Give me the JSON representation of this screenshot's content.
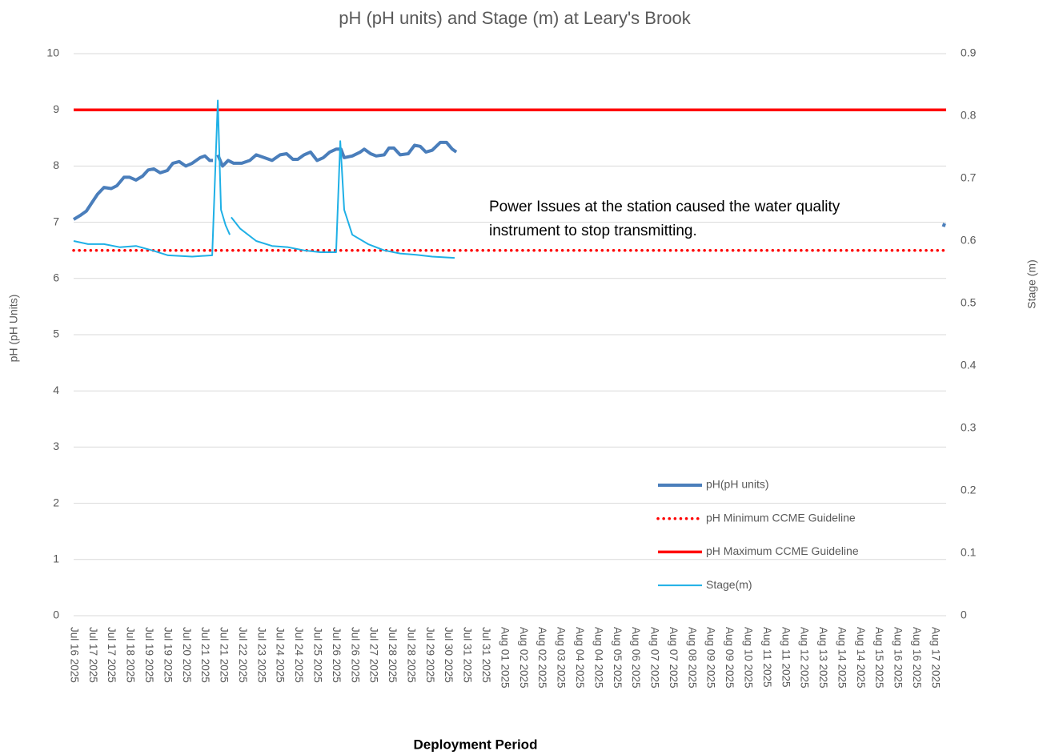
{
  "chart_data": {
    "type": "line",
    "title": "pH (pH units) and Stage (m) at Leary's Brook",
    "xlabel": "Deployment Period",
    "ylabel": "pH (pH Units)",
    "y2label": "Stage (m)",
    "annotation": [
      "Power Issues at the station caused the water quality",
      "instrument to stop transmitting."
    ],
    "xlim": [
      0,
      46.6
    ],
    "xticks": [
      {
        "value": 0,
        "label": "Jul 16 2025"
      },
      {
        "value": 1,
        "label": "Jul 17 2025"
      },
      {
        "value": 2,
        "label": "Jul 17 2025"
      },
      {
        "value": 3,
        "label": "Jul 18 2025"
      },
      {
        "value": 4,
        "label": "Jul 19 2025"
      },
      {
        "value": 5,
        "label": "Jul 19 2025"
      },
      {
        "value": 6,
        "label": "Jul 20 2025"
      },
      {
        "value": 7,
        "label": "Jul 21 2025"
      },
      {
        "value": 8,
        "label": "Jul 21 2025"
      },
      {
        "value": 9,
        "label": "Jul 22 2025"
      },
      {
        "value": 10,
        "label": "Jul 23 2025"
      },
      {
        "value": 11,
        "label": "Jul 24 2025"
      },
      {
        "value": 12,
        "label": "Jul 24 2025"
      },
      {
        "value": 13,
        "label": "Jul 25 2025"
      },
      {
        "value": 14,
        "label": "Jul 26 2025"
      },
      {
        "value": 15,
        "label": "Jul 26 2025"
      },
      {
        "value": 16,
        "label": "Jul 27 2025"
      },
      {
        "value": 17,
        "label": "Jul 28 2025"
      },
      {
        "value": 18,
        "label": "Jul 28 2025"
      },
      {
        "value": 19,
        "label": "Jul 29 2025"
      },
      {
        "value": 20,
        "label": "Jul 30 2025"
      },
      {
        "value": 21,
        "label": "Jul 31 2025"
      },
      {
        "value": 22,
        "label": "Jul 31 2025"
      },
      {
        "value": 23,
        "label": "Aug 01 2025"
      },
      {
        "value": 24,
        "label": "Aug 02 2025"
      },
      {
        "value": 25,
        "label": "Aug 02 2025"
      },
      {
        "value": 26,
        "label": "Aug 03 2025"
      },
      {
        "value": 27,
        "label": "Aug 04 2025"
      },
      {
        "value": 28,
        "label": "Aug 04 2025"
      },
      {
        "value": 29,
        "label": "Aug 05 2025"
      },
      {
        "value": 30,
        "label": "Aug 06 2025"
      },
      {
        "value": 31,
        "label": "Aug 07 2025"
      },
      {
        "value": 32,
        "label": "Aug 07 2025"
      },
      {
        "value": 33,
        "label": "Aug 08 2025"
      },
      {
        "value": 34,
        "label": "Aug 09 2025"
      },
      {
        "value": 35,
        "label": "Aug 09 2025"
      },
      {
        "value": 36,
        "label": "Aug 10 2025"
      },
      {
        "value": 37,
        "label": "Aug 11 2025"
      },
      {
        "value": 38,
        "label": "Aug 11 2025"
      },
      {
        "value": 39,
        "label": "Aug 12 2025"
      },
      {
        "value": 40,
        "label": "Aug 13 2025"
      },
      {
        "value": 41,
        "label": "Aug 14 2025"
      },
      {
        "value": 42,
        "label": "Aug 14 2025"
      },
      {
        "value": 43,
        "label": "Aug 15 2025"
      },
      {
        "value": 44,
        "label": "Aug 16 2025"
      },
      {
        "value": 45,
        "label": "Aug 16 2025"
      },
      {
        "value": 46,
        "label": "Aug 17 2025"
      }
    ],
    "ylim": [
      0,
      10
    ],
    "yticks": [
      0,
      1,
      2,
      3,
      4,
      5,
      6,
      7,
      8,
      9,
      10
    ],
    "y2lim": [
      0,
      0.9
    ],
    "y2ticks": [
      0,
      0.1,
      0.2,
      0.3,
      0.4,
      0.5,
      0.6,
      0.7,
      0.8,
      0.9
    ],
    "grid": true,
    "legend": "lower right",
    "series": [
      {
        "name": "pH(pH units)",
        "color": "#4a7ebb",
        "line_style": "solid",
        "width": 4,
        "x": [
          0,
          0.34,
          0.68,
          0.98,
          1.28,
          1.62,
          2.01,
          2.31,
          2.69,
          2.99,
          3.33,
          3.68,
          3.98,
          4.28,
          4.62,
          5.0,
          5.3,
          5.64,
          5.99,
          6.33,
          6.76,
          7.01,
          7.27,
          7.44,
          null,
          7.7,
          7.95,
          8.25,
          8.55,
          8.98,
          9.41,
          9.75,
          10.18,
          10.6,
          11.03,
          11.37,
          11.71,
          11.97,
          12.31,
          12.65,
          13.0,
          13.34,
          13.68,
          14.02,
          14.28,
          14.45,
          14.88,
          15.31,
          15.52,
          15.86,
          16.16,
          16.59,
          16.84,
          17.1,
          17.44,
          17.87,
          18.21,
          18.51,
          18.81,
          19.15,
          19.58,
          19.92,
          20.22,
          20.44,
          null,
          46.45,
          46.52
        ],
        "values": [
          7.05,
          7.12,
          7.2,
          7.35,
          7.5,
          7.62,
          7.6,
          7.65,
          7.8,
          7.8,
          7.75,
          7.82,
          7.93,
          7.95,
          7.88,
          7.92,
          8.05,
          8.08,
          8.0,
          8.05,
          8.15,
          8.18,
          8.1,
          8.1,
          null,
          8.2,
          8.0,
          8.1,
          8.05,
          8.05,
          8.1,
          8.2,
          8.15,
          8.1,
          8.2,
          8.22,
          8.12,
          8.12,
          8.2,
          8.25,
          8.1,
          8.15,
          8.25,
          8.3,
          8.3,
          8.15,
          8.18,
          8.25,
          8.3,
          8.22,
          8.18,
          8.2,
          8.32,
          8.32,
          8.2,
          8.22,
          8.37,
          8.35,
          8.25,
          8.28,
          8.42,
          8.42,
          8.3,
          8.25,
          null,
          6.92,
          6.98
        ]
      },
      {
        "name": "pH Minimum CCME Guideline",
        "color": "#ff0000",
        "line_style": "dotted",
        "width": 3.5,
        "x": [
          0,
          46.6
        ],
        "values": [
          6.5,
          6.5
        ]
      },
      {
        "name": "pH Maximum CCME Guideline",
        "color": "#ff0000",
        "line_style": "solid",
        "width": 3.5,
        "x": [
          0,
          46.6
        ],
        "values": [
          9,
          9
        ]
      },
      {
        "name": "Stage(m)",
        "color": "#1fb0e6",
        "line_style": "solid",
        "width": 2,
        "axis": "y2",
        "x": [
          0,
          0.77,
          1.62,
          2.48,
          3.33,
          4.19,
          5.04,
          6.33,
          7.4,
          7.7,
          7.87,
          8.12,
          8.34,
          null,
          8.42,
          8.89,
          9.75,
          10.6,
          11.46,
          12.31,
          13.17,
          14.02,
          14.24,
          14.45,
          14.88,
          15.73,
          16.59,
          17.44,
          18.3,
          19.15,
          20.35
        ],
        "values": [
          0.6,
          0.595,
          0.595,
          0.59,
          0.592,
          0.585,
          0.577,
          0.575,
          0.577,
          0.825,
          0.65,
          0.625,
          0.61,
          null,
          0.638,
          0.62,
          0.6,
          0.592,
          0.59,
          0.585,
          0.582,
          0.582,
          0.76,
          0.65,
          0.61,
          0.595,
          0.585,
          0.58,
          0.578,
          0.575,
          0.573
        ]
      }
    ]
  }
}
